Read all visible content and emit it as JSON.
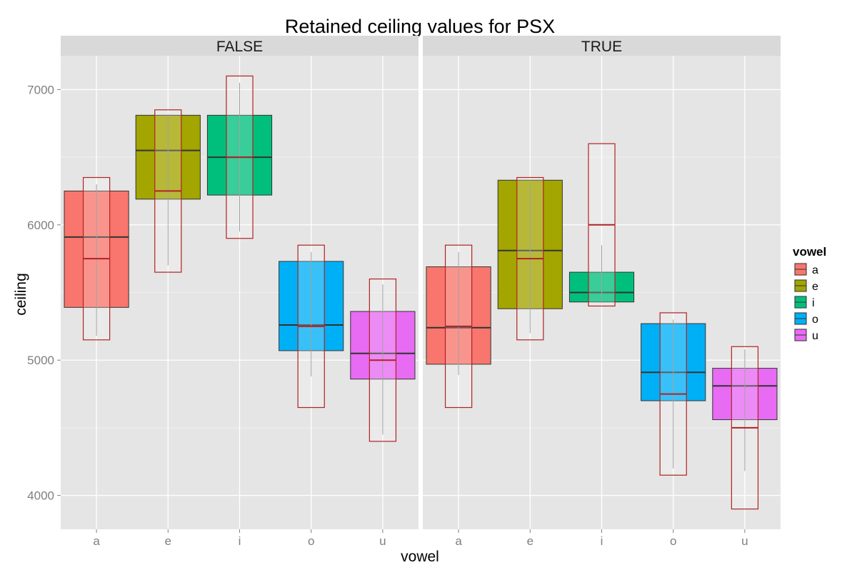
{
  "chart_data": {
    "type": "box",
    "title": "Retained ceiling values for PSX",
    "xlabel": "vowel",
    "ylabel": "ceiling",
    "ylim": [
      3750,
      7250
    ],
    "yticks": [
      4000,
      5000,
      6000,
      7000
    ],
    "categories": [
      "a",
      "e",
      "i",
      "o",
      "u"
    ],
    "grid": true,
    "legend": {
      "title": "vowel",
      "position": "right",
      "entries": [
        {
          "label": "a",
          "color": "#F8766D"
        },
        {
          "label": "e",
          "color": "#A3A500"
        },
        {
          "label": "i",
          "color": "#00BF7D"
        },
        {
          "label": "o",
          "color": "#00B0F6"
        },
        {
          "label": "u",
          "color": "#E76BF3"
        }
      ]
    },
    "panels": [
      {
        "label": "FALSE",
        "boxes": [
          {
            "vowel": "a",
            "q1": 5390,
            "median": 5910,
            "q3": 6250,
            "color": "#F8766D"
          },
          {
            "vowel": "e",
            "q1": 6190,
            "median": 6550,
            "q3": 6810,
            "color": "#A3A500"
          },
          {
            "vowel": "i",
            "q1": 6220,
            "median": 6500,
            "q3": 6810,
            "color": "#00BF7D"
          },
          {
            "vowel": "o",
            "q1": 5070,
            "median": 5260,
            "q3": 5730,
            "color": "#00B0F6"
          },
          {
            "vowel": "u",
            "q1": 4860,
            "median": 5050,
            "q3": 5360,
            "color": "#E76BF3"
          }
        ],
        "overlay": [
          {
            "vowel": "a",
            "low": 5150,
            "mid": 5750,
            "high": 6350,
            "whisker_low": 5180,
            "whisker_high": 6300
          },
          {
            "vowel": "e",
            "low": 5650,
            "mid": 6250,
            "high": 6850,
            "whisker_low": 5700,
            "whisker_high": 6820
          },
          {
            "vowel": "i",
            "low": 5900,
            "mid": 6500,
            "high": 7100,
            "whisker_low": 5950,
            "whisker_high": 7050
          },
          {
            "vowel": "o",
            "low": 4650,
            "mid": 5250,
            "high": 5850,
            "whisker_low": 4880,
            "whisker_high": 5800
          },
          {
            "vowel": "u",
            "low": 4400,
            "mid": 5000,
            "high": 5600,
            "whisker_low": 4450,
            "whisker_high": 5560
          }
        ]
      },
      {
        "label": "TRUE",
        "boxes": [
          {
            "vowel": "a",
            "q1": 4970,
            "median": 5240,
            "q3": 5690,
            "color": "#F8766D"
          },
          {
            "vowel": "e",
            "q1": 5380,
            "median": 5810,
            "q3": 6330,
            "color": "#A3A500"
          },
          {
            "vowel": "i",
            "q1": 5430,
            "median": 5500,
            "q3": 5650,
            "color": "#00BF7D"
          },
          {
            "vowel": "o",
            "q1": 4700,
            "median": 4910,
            "q3": 5270,
            "color": "#00B0F6"
          },
          {
            "vowel": "u",
            "q1": 4560,
            "median": 4810,
            "q3": 4940,
            "color": "#E76BF3"
          }
        ],
        "overlay": [
          {
            "vowel": "a",
            "low": 4650,
            "mid": 5250,
            "high": 5850,
            "whisker_low": 4890,
            "whisker_high": 5800
          },
          {
            "vowel": "e",
            "low": 5150,
            "mid": 5750,
            "high": 6350,
            "whisker_low": 5200,
            "whisker_high": 6300
          },
          {
            "vowel": "i",
            "low": 5400,
            "mid": 6000,
            "high": 6600,
            "whisker_low": 5420,
            "whisker_high": 5850
          },
          {
            "vowel": "o",
            "low": 4150,
            "mid": 4750,
            "high": 5350,
            "whisker_low": 4200,
            "whisker_high": 5300
          },
          {
            "vowel": "u",
            "low": 3900,
            "mid": 4500,
            "high": 5100,
            "whisker_low": 4180,
            "whisker_high": 5080
          }
        ]
      }
    ]
  }
}
